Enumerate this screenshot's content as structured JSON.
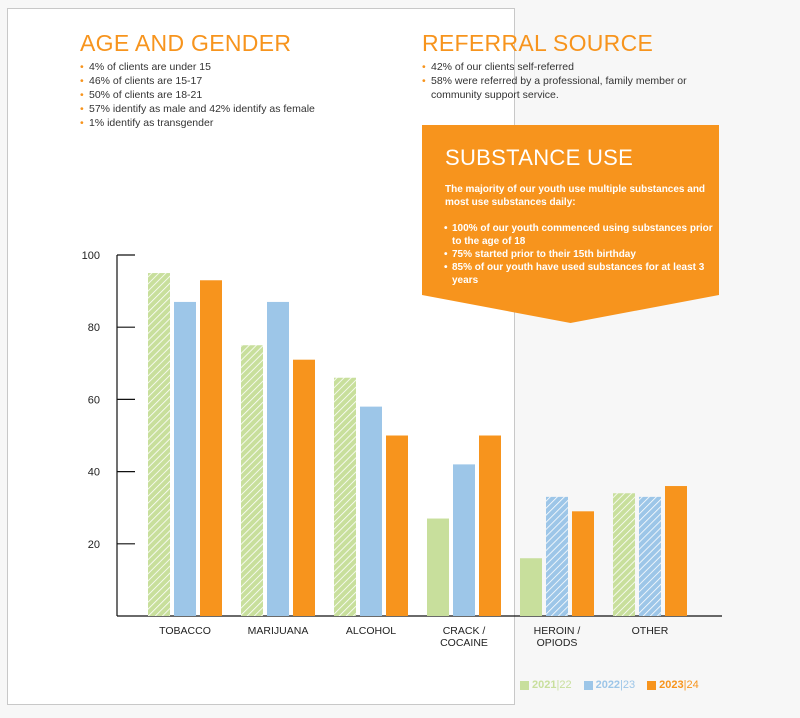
{
  "age_gender": {
    "title": "AGE AND GENDER",
    "bullets": [
      "4% of clients are under 15",
      "46% of clients are 15-17",
      "50% of clients are 18-21",
      "57% identify as male and 42% identify as female",
      "1% identify as transgender"
    ]
  },
  "referral": {
    "title": "REFERRAL SOURCE",
    "bullets": [
      "42% of our clients self-referred",
      "58% were referred by a professional, family member or community support service."
    ]
  },
  "substance_use": {
    "title": "SUBSTANCE USE",
    "intro": "The majority of our youth use multiple substances and most use substances daily:",
    "bullets": [
      "100% of our youth commenced using substances prior to the age of 18",
      "75% started prior to their 15th birthday",
      "85% of our youth have used substances for at least 3 years"
    ],
    "color": "#f7941d"
  },
  "legend": [
    {
      "bold": "2021",
      "light": "|22",
      "color": "#c8df9c"
    },
    {
      "bold": "2022",
      "light": "|23",
      "color": "#9dc6e8"
    },
    {
      "bold": "2023",
      "light": "|24",
      "color": "#f7941d"
    }
  ],
  "chart_data": {
    "type": "bar",
    "title": "",
    "xlabel": "",
    "ylabel": "",
    "ylim": [
      0,
      100
    ],
    "yticks": [
      20,
      40,
      60,
      80,
      100
    ],
    "grid": false,
    "legend_position": "bottom-right",
    "categories": [
      "TOBACCO",
      "MARIJUANA",
      "ALCOHOL",
      "CRACK / COCAINE",
      "HEROIN / OPIODS",
      "OTHER"
    ],
    "category_lines": [
      [
        "TOBACCO"
      ],
      [
        "MARIJUANA"
      ],
      [
        "ALCOHOL"
      ],
      [
        "CRACK /",
        "COCAINE"
      ],
      [
        "HEROIN /",
        "OPIODS"
      ],
      [
        "OTHER"
      ]
    ],
    "series": [
      {
        "name": "2021|22",
        "color": "#c8df9c",
        "values": [
          95,
          75,
          66,
          27,
          16,
          34
        ],
        "hatched": [
          true,
          true,
          true,
          false,
          false,
          true
        ]
      },
      {
        "name": "2022|23",
        "color": "#9dc6e8",
        "values": [
          87,
          87,
          58,
          42,
          33,
          33
        ],
        "hatched": [
          false,
          false,
          false,
          false,
          true,
          true
        ]
      },
      {
        "name": "2023|24",
        "color": "#f7941d",
        "values": [
          93,
          71,
          50,
          50,
          29,
          36
        ],
        "hatched": [
          false,
          false,
          false,
          false,
          false,
          false
        ]
      }
    ]
  }
}
